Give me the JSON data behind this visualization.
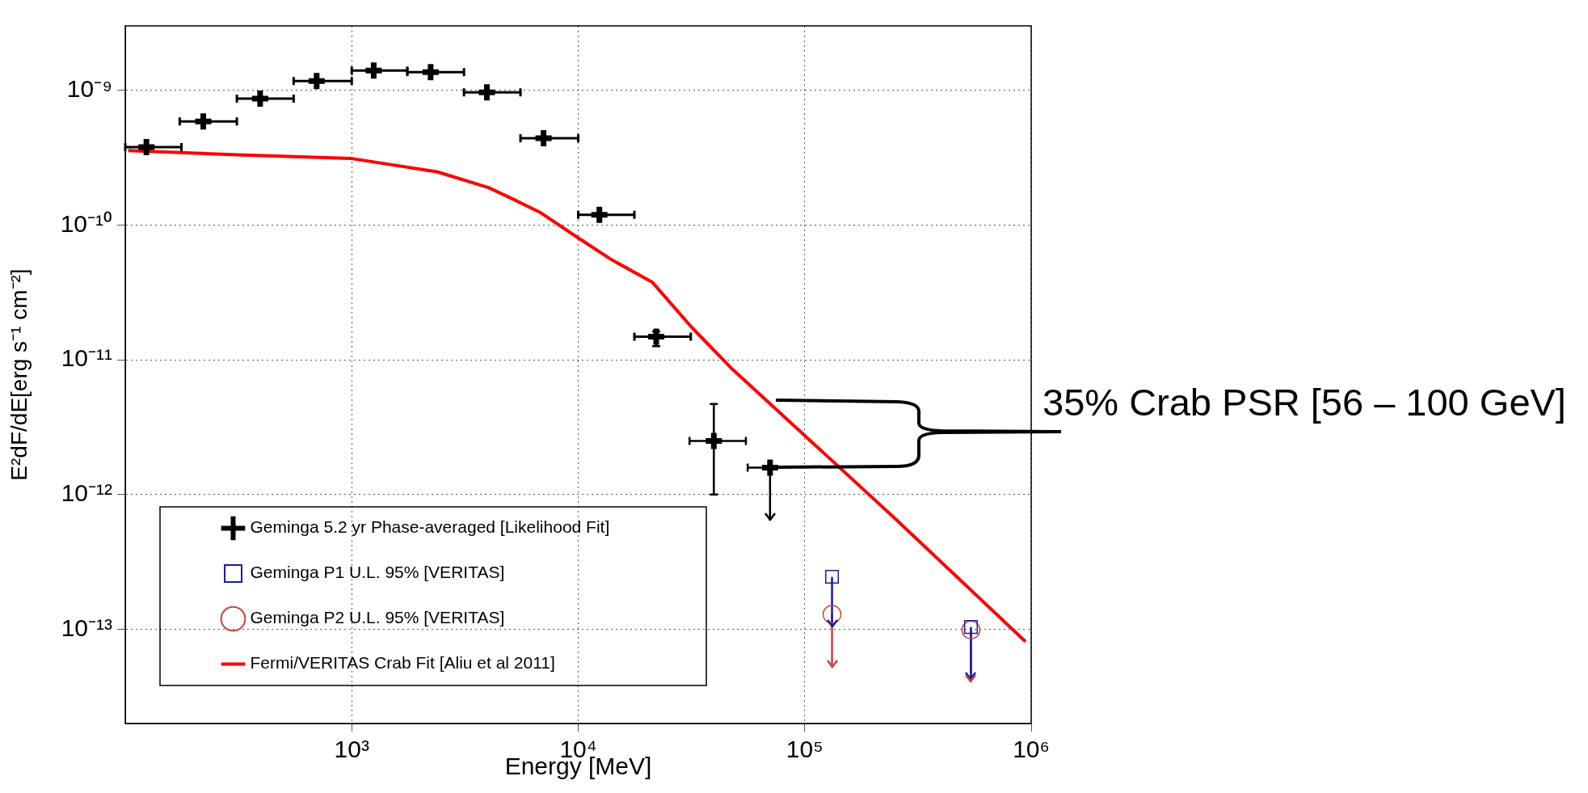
{
  "chart_data": {
    "type": "scatter",
    "xlabel": "Energy [MeV]",
    "ylabel": "E²dF/dE[erg s⁻¹ cm⁻²]",
    "log": "xy",
    "grid": true,
    "legend": "bottom left",
    "xlim": [
      100,
      1000000
    ],
    "xticks": [
      {
        "value": 1000,
        "label": "10³"
      },
      {
        "value": 10000,
        "label": "10⁴"
      },
      {
        "value": 100000,
        "label": "10⁵"
      },
      {
        "value": 1000000,
        "label": "10⁶"
      }
    ],
    "ylim": [
      2e-14,
      3e-09
    ],
    "yticks": [
      {
        "value": 1e-13,
        "label": "10⁻¹³"
      },
      {
        "value": 1e-12,
        "label": "10⁻¹²"
      },
      {
        "value": 1e-11,
        "label": "10⁻¹¹"
      },
      {
        "value": 1e-10,
        "label": "10⁻¹⁰"
      },
      {
        "value": 1e-09,
        "label": "10⁻⁹"
      }
    ],
    "annotations": [
      "35% Crab PSR [56 – 100 GeV]"
    ],
    "series": [
      {
        "name": "Geminga 5.2 yr Phase-averaged [Likelihood Fit]",
        "color": "#000000",
        "marker": "cross",
        "x": [
          124,
          221,
          394,
          700,
          1250,
          2230,
          3950,
          7030,
          12400,
          22100,
          39700,
          70300
        ],
        "values": [
          3.78e-10,
          5.85e-10,
          8.67e-10,
          1.17e-09,
          1.4e-09,
          1.36e-09,
          9.65e-10,
          4.4e-10,
          1.19e-10,
          1.48e-11,
          2.5e-12,
          1.58e-12
        ],
        "errors": [
          null,
          null,
          null,
          null,
          null,
          null,
          null,
          null,
          null,
          [
            1.26e-11,
            1.62e-11
          ],
          [
            1e-12,
            4.7e-12
          ],
          [
            6.4e-13,
            1.58e-12
          ]
        ],
        "xerrors": [
          [
            100,
            177
          ],
          [
            174,
            311
          ],
          [
            311,
            554
          ],
          [
            554,
            1000
          ],
          [
            1000,
            1760
          ],
          [
            1760,
            3130
          ],
          [
            3130,
            5560
          ],
          [
            5560,
            10000
          ],
          [
            10000,
            17700
          ],
          [
            17700,
            31400
          ],
          [
            31000,
            55000
          ],
          [
            56000,
            70300
          ]
        ]
      },
      {
        "name": "Geminga P1 U.L. 95% [VERITAS]",
        "color": "#1a1aa0",
        "marker": "square",
        "x": [
          132000,
          542000
        ],
        "values": [
          2.45e-13,
          1.04e-13
        ],
        "errors": [
          [
            1.04e-13,
            2.45e-13
          ],
          [
            4.2e-14,
            1.04e-13
          ]
        ]
      },
      {
        "name": "Geminga P2 U.L. 95% [VERITAS]",
        "color": "#d04040",
        "marker": "circle",
        "x": [
          132000,
          542000
        ],
        "values": [
          1.29e-13,
          9.9e-14
        ],
        "errors": [
          [
            5.2e-14,
            1.29e-13
          ],
          [
            4.07e-14,
            9.9e-14
          ]
        ]
      },
      {
        "name": "Fermi/VERITAS Crab Fit [Aliu et al 2011]",
        "type": "line",
        "color": "#ff0000",
        "marker": "none",
        "x": [
          103,
          294,
          986,
          2380,
          4020,
          5090,
          6780,
          9900,
          14100,
          21200,
          31600,
          47100,
          249000,
          944000
        ],
        "values": [
          3.56e-10,
          3.33e-10,
          3.12e-10,
          2.48e-10,
          1.89e-10,
          1.57e-10,
          1.24e-10,
          8.1e-11,
          5.5e-11,
          3.77e-11,
          1.75e-11,
          8.75e-12,
          6.7e-13,
          8.1e-14
        ]
      }
    ]
  }
}
